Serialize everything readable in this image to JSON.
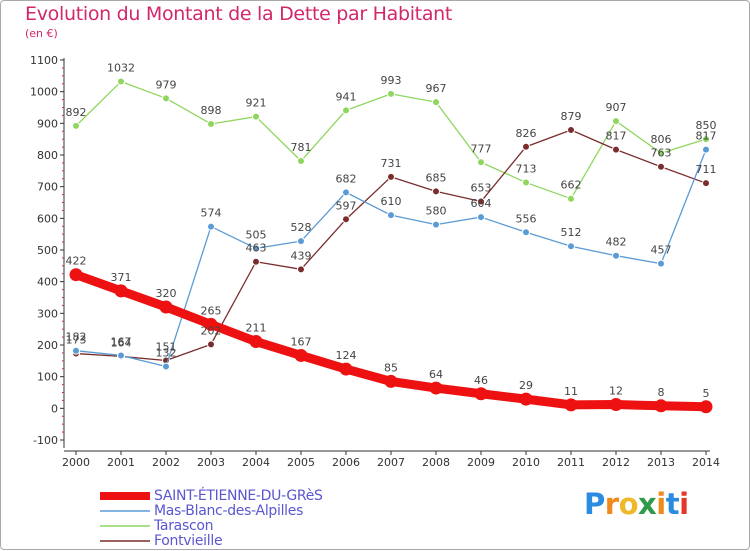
{
  "title": "Evolution du Montant de la Dette par Habitant",
  "subtitle": "(en €)",
  "logo": {
    "letters": [
      "P",
      "r",
      "o",
      "x",
      "i",
      "t",
      "i"
    ],
    "colors": [
      "#2b8be0",
      "#f08a1c",
      "#f0b92a",
      "#2e9a4a",
      "#f08a1c",
      "#2b8be0",
      "#e6352b"
    ]
  },
  "chart_data": {
    "type": "line",
    "x": [
      "2000",
      "2001",
      "2002",
      "2003",
      "2004",
      "2005",
      "2006",
      "2007",
      "2008",
      "2009",
      "2010",
      "2011",
      "2012",
      "2013",
      "2014"
    ],
    "ylim": [
      -100,
      1100
    ],
    "yticks": [
      "-100",
      "0",
      "100",
      "200",
      "300",
      "400",
      "500",
      "600",
      "700",
      "800",
      "900",
      "1000",
      "1100"
    ],
    "grid": false,
    "legend_position": "bottom-left",
    "series": [
      {
        "name": "SAINT-ÉTIENNE-DU-GRèS",
        "color": "#ee1111",
        "values": [
          422,
          371,
          320,
          265,
          211,
          167,
          124,
          85,
          64,
          46,
          29,
          11,
          12,
          8,
          5
        ],
        "labels": [
          "422",
          "371",
          "320",
          "265",
          "211",
          "167",
          "124",
          "85",
          "64",
          "46",
          "29",
          "11",
          "12",
          "8",
          "5"
        ]
      },
      {
        "name": "Mas-Blanc-des-Alpilles",
        "color": "#5b9bd5",
        "values": [
          182,
          167,
          132,
          574,
          505,
          528,
          682,
          610,
          580,
          604,
          556,
          512,
          482,
          457,
          817
        ],
        "labels": [
          "182",
          "167",
          "132",
          "574",
          "505",
          "528",
          "682",
          "610",
          "580",
          "604",
          "556",
          "512",
          "482",
          "457",
          "817"
        ]
      },
      {
        "name": "Tarascon",
        "color": "#8ed65e",
        "values": [
          892,
          1032,
          979,
          898,
          921,
          781,
          941,
          993,
          967,
          777,
          713,
          662,
          907,
          806,
          850
        ],
        "labels": [
          "892",
          "1032",
          "979",
          "898",
          "921",
          "781",
          "941",
          "993",
          "967",
          "777",
          "713",
          "662",
          "907",
          "806",
          "850"
        ]
      },
      {
        "name": "Fontvieille",
        "color": "#7a2d2d",
        "values": [
          173,
          164,
          151,
          202,
          463,
          439,
          597,
          731,
          685,
          653,
          826,
          879,
          817,
          763,
          711
        ],
        "labels": [
          "173",
          "164",
          "151",
          "202",
          "463",
          "439",
          "597",
          "731",
          "685",
          "653",
          "826",
          "879",
          "817",
          "763",
          "711"
        ]
      }
    ]
  }
}
